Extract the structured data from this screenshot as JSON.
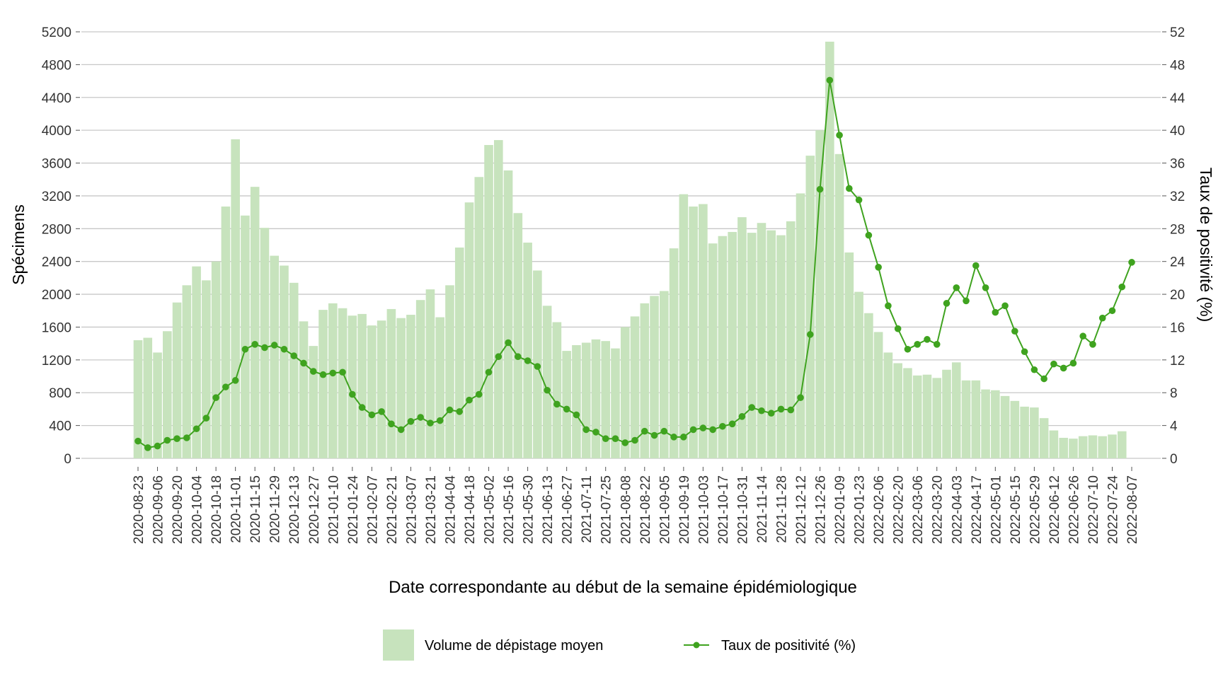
{
  "chart_data": {
    "type": "bar",
    "xlabel": "Date correspondante au début de la semaine épidémiologique",
    "ylabel": "Spécimens",
    "y2label": "Taux de positivité (%)",
    "ylim": [
      0,
      5200
    ],
    "y2lim": [
      0,
      52
    ],
    "yticks": [
      0,
      400,
      800,
      1200,
      1600,
      2000,
      2400,
      2800,
      3200,
      3600,
      4000,
      4400,
      4800,
      5200
    ],
    "y2ticks": [
      0,
      4,
      8,
      12,
      16,
      20,
      24,
      28,
      32,
      36,
      40,
      44,
      48,
      52
    ],
    "grid": true,
    "legend_position": "bottom",
    "colors": {
      "bars": "#c7e3bd",
      "line": "#3fa31f",
      "grid": "#c8c8c8",
      "text": "#333333"
    },
    "x_tick_labels": [
      "2020-08-23",
      "2020-09-06",
      "2020-09-20",
      "2020-10-04",
      "2020-10-18",
      "2020-11-01",
      "2020-11-15",
      "2020-11-29",
      "2020-12-13",
      "2020-12-27",
      "2021-01-10",
      "2021-01-24",
      "2021-02-07",
      "2021-02-21",
      "2021-03-07",
      "2021-03-21",
      "2021-04-04",
      "2021-04-18",
      "2021-05-02",
      "2021-05-16",
      "2021-05-30",
      "2021-06-13",
      "2021-06-27",
      "2021-07-11",
      "2021-07-25",
      "2021-08-08",
      "2021-08-22",
      "2021-09-05",
      "2021-09-19",
      "2021-10-03",
      "2021-10-17",
      "2021-10-31",
      "2021-11-14",
      "2021-11-28",
      "2021-12-12",
      "2021-12-26",
      "2022-01-09",
      "2022-01-23",
      "2022-02-06",
      "2022-02-20",
      "2022-03-06",
      "2022-03-20",
      "2022-04-03",
      "2022-04-17",
      "2022-05-01",
      "2022-05-15",
      "2022-05-29",
      "2022-06-12",
      "2022-06-26",
      "2022-07-10",
      "2022-07-24",
      "2022-08-07"
    ],
    "categories": [
      "2020-08-23",
      "2020-08-30",
      "2020-09-06",
      "2020-09-13",
      "2020-09-20",
      "2020-09-27",
      "2020-10-04",
      "2020-10-11",
      "2020-10-18",
      "2020-10-25",
      "2020-11-01",
      "2020-11-08",
      "2020-11-15",
      "2020-11-22",
      "2020-11-29",
      "2020-12-06",
      "2020-12-13",
      "2020-12-20",
      "2020-12-27",
      "2021-01-03",
      "2021-01-10",
      "2021-01-17",
      "2021-01-24",
      "2021-01-31",
      "2021-02-07",
      "2021-02-14",
      "2021-02-21",
      "2021-02-28",
      "2021-03-07",
      "2021-03-14",
      "2021-03-21",
      "2021-03-28",
      "2021-04-04",
      "2021-04-11",
      "2021-04-18",
      "2021-04-25",
      "2021-05-02",
      "2021-05-09",
      "2021-05-16",
      "2021-05-23",
      "2021-05-30",
      "2021-06-06",
      "2021-06-13",
      "2021-06-20",
      "2021-06-27",
      "2021-07-04",
      "2021-07-11",
      "2021-07-18",
      "2021-07-25",
      "2021-08-01",
      "2021-08-08",
      "2021-08-15",
      "2021-08-22",
      "2021-08-29",
      "2021-09-05",
      "2021-09-12",
      "2021-09-19",
      "2021-09-26",
      "2021-10-03",
      "2021-10-10",
      "2021-10-17",
      "2021-10-24",
      "2021-10-31",
      "2021-11-07",
      "2021-11-14",
      "2021-11-21",
      "2021-11-28",
      "2021-12-05",
      "2021-12-12",
      "2021-12-19",
      "2021-12-26",
      "2022-01-02",
      "2022-01-09",
      "2022-01-16",
      "2022-01-23",
      "2022-01-30",
      "2022-02-06",
      "2022-02-13",
      "2022-02-20",
      "2022-02-27",
      "2022-03-06",
      "2022-03-13",
      "2022-03-20",
      "2022-03-27",
      "2022-04-03",
      "2022-04-10",
      "2022-04-17",
      "2022-04-24",
      "2022-05-01",
      "2022-05-08",
      "2022-05-15",
      "2022-05-22",
      "2022-05-29",
      "2022-06-05",
      "2022-06-12",
      "2022-06-19",
      "2022-06-26",
      "2022-07-03",
      "2022-07-10",
      "2022-07-17",
      "2022-07-24",
      "2022-07-31",
      "2022-08-07"
    ],
    "series": [
      {
        "name": "Volume de dépistage moyen",
        "type": "bar",
        "axis": "left",
        "values": [
          1440,
          1470,
          1290,
          1550,
          1900,
          2110,
          2340,
          2170,
          2400,
          3070,
          3890,
          2960,
          3310,
          2810,
          2470,
          2350,
          2140,
          1670,
          1370,
          1810,
          1890,
          1830,
          1740,
          1760,
          1620,
          1680,
          1820,
          1710,
          1750,
          1930,
          2060,
          1720,
          2110,
          2570,
          3120,
          3430,
          3820,
          3880,
          3510,
          2990,
          2630,
          2290,
          1860,
          1660,
          1310,
          1380,
          1410,
          1450,
          1430,
          1340,
          1600,
          1730,
          1890,
          1980,
          2040,
          2560,
          3220,
          3070,
          3100,
          2620,
          2710,
          2760,
          2940,
          2750,
          2870,
          2780,
          2720,
          2890,
          3230,
          3690,
          4000,
          5080,
          3710,
          2510,
          2030,
          1770,
          1540,
          1290,
          1160,
          1100,
          1010,
          1020,
          980,
          1080,
          1170,
          950,
          950,
          840,
          830,
          760,
          700,
          630,
          620,
          490,
          340,
          250,
          240,
          270,
          280,
          270,
          290,
          330,
          0
        ]
      },
      {
        "name": "Taux de positivité (%)",
        "type": "line",
        "axis": "right",
        "values": [
          2.1,
          1.3,
          1.5,
          2.2,
          2.4,
          2.5,
          3.6,
          4.9,
          7.4,
          8.7,
          9.5,
          13.3,
          13.9,
          13.5,
          13.8,
          13.3,
          12.5,
          11.6,
          10.6,
          10.2,
          10.4,
          10.5,
          7.8,
          6.2,
          5.3,
          5.7,
          4.2,
          3.5,
          4.5,
          5.0,
          4.3,
          4.6,
          5.9,
          5.7,
          7.1,
          7.8,
          10.5,
          12.4,
          14.1,
          12.4,
          11.9,
          11.2,
          8.3,
          6.6,
          6.0,
          5.3,
          3.5,
          3.2,
          2.4,
          2.4,
          1.9,
          2.2,
          3.3,
          2.8,
          3.3,
          2.6,
          2.6,
          3.5,
          3.7,
          3.5,
          3.9,
          4.2,
          5.1,
          6.2,
          5.8,
          5.5,
          6.0,
          5.9,
          7.4,
          15.1,
          32.8,
          46.1,
          39.4,
          32.9,
          31.5,
          27.2,
          23.3,
          18.6,
          15.8,
          13.3,
          13.9,
          14.5,
          13.9,
          18.9,
          20.8,
          19.2,
          23.5,
          20.8,
          17.8,
          18.6,
          15.5,
          13.0,
          10.8,
          9.7,
          11.5,
          11.0,
          11.6,
          14.9,
          13.9,
          17.1,
          18.0,
          20.9,
          23.9
        ]
      }
    ]
  }
}
